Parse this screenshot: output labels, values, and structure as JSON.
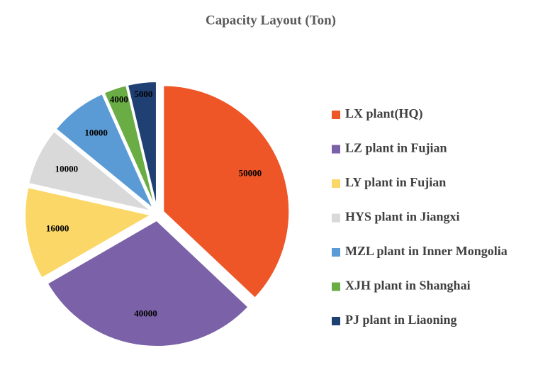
{
  "chart_data": {
    "type": "pie",
    "title": "Capacity Layout (Ton)",
    "categories": [
      "LX plant(HQ)",
      "LZ plant in Fujian",
      "LY plant in Fujian",
      "HYS plant in Jiangxi",
      "MZL plant in Inner Mongolia",
      "XJH plant in Shanghai",
      "PJ plant in Liaoning"
    ],
    "values": [
      50000,
      40000,
      16000,
      10000,
      10000,
      4000,
      5000
    ],
    "colors": [
      "#ee5527",
      "#7b62a8",
      "#fad766",
      "#d9d9d9",
      "#5b9bd5",
      "#6aad45",
      "#203f72"
    ],
    "legend": "right"
  }
}
